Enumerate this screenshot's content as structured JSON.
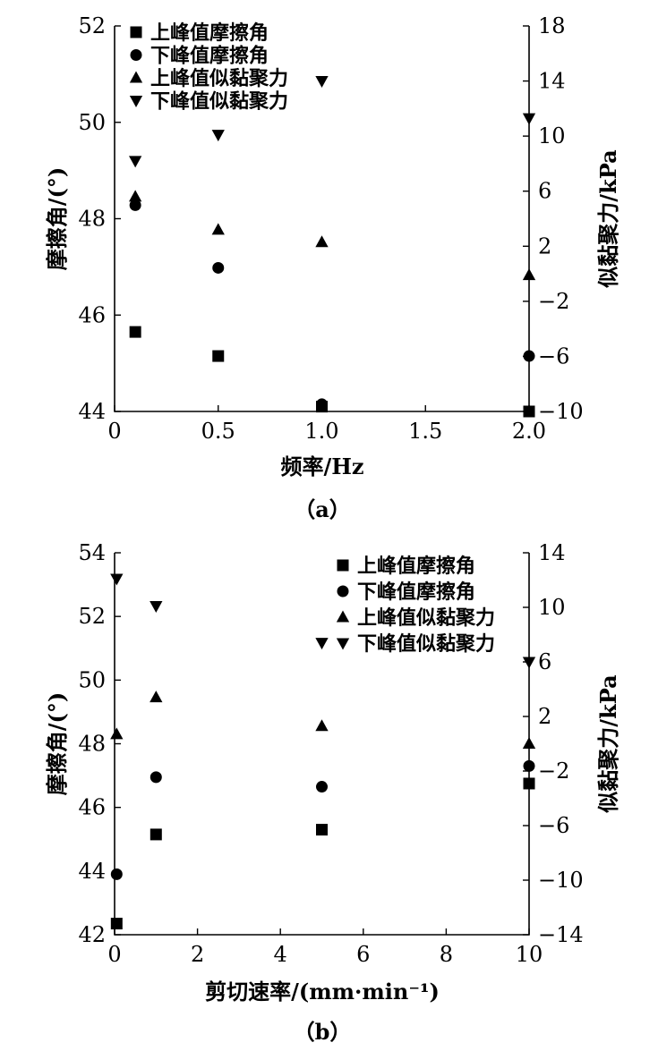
{
  "chart_data": [
    {
      "type": "scatter",
      "caption": "（a）",
      "xlabel": "频率/Hz",
      "ylabel_left": "摩擦角/(°)",
      "ylabel_right": "似黏聚力/kPa",
      "xlim": [
        0,
        2.0
      ],
      "ylim_left": [
        44,
        52
      ],
      "ylim_right": [
        -10,
        18
      ],
      "x_ticks": [
        {
          "value": 0,
          "label": "0"
        },
        {
          "value": 0.5,
          "label": "0.5"
        },
        {
          "value": 1.0,
          "label": "1.0"
        },
        {
          "value": 1.5,
          "label": "1.5"
        },
        {
          "value": 2.0,
          "label": "2.0"
        }
      ],
      "y_left_ticks": [
        {
          "value": 44,
          "label": "44"
        },
        {
          "value": 46,
          "label": "46"
        },
        {
          "value": 48,
          "label": "48"
        },
        {
          "value": 50,
          "label": "50"
        },
        {
          "value": 52,
          "label": "52"
        }
      ],
      "y_right_ticks": [
        {
          "value": -10,
          "label": "−10"
        },
        {
          "value": -6,
          "label": "−6"
        },
        {
          "value": -2,
          "label": "−2"
        },
        {
          "value": 2,
          "label": "2"
        },
        {
          "value": 6,
          "label": "6"
        },
        {
          "value": 10,
          "label": "10"
        },
        {
          "value": 14,
          "label": "14"
        },
        {
          "value": 18,
          "label": "18"
        }
      ],
      "legend_position": "top-left",
      "grid": false,
      "series": [
        {
          "name": "上峰值摩擦角",
          "marker": "square",
          "axis": "left",
          "x": [
            0.1,
            0.5,
            1.0,
            2.0
          ],
          "values": [
            45.65,
            45.15,
            44.1,
            44.0
          ]
        },
        {
          "name": "下峰值摩擦角",
          "marker": "circle",
          "axis": "left",
          "x": [
            0.1,
            0.5,
            1.0,
            2.0
          ],
          "values": [
            48.28,
            46.98,
            44.15,
            45.15
          ]
        },
        {
          "name": "上峰值似黏聚力",
          "marker": "triangle-up",
          "axis": "right",
          "x": [
            0.1,
            0.5,
            1.0,
            2.0
          ],
          "values": [
            5.6,
            3.2,
            2.3,
            -0.1
          ]
        },
        {
          "name": "下峰值似黏聚力",
          "marker": "triangle-down",
          "axis": "right",
          "x": [
            0.1,
            0.5,
            1.0,
            2.0
          ],
          "values": [
            8.2,
            10.1,
            14.0,
            11.3
          ]
        }
      ]
    },
    {
      "type": "scatter",
      "caption": "（b）",
      "xlabel": "剪切速率/(mm·min⁻¹)",
      "ylabel_left": "摩擦角/(°)",
      "ylabel_right": "似黏聚力/kPa",
      "xlim": [
        0,
        10
      ],
      "ylim_left": [
        42,
        54
      ],
      "ylim_right": [
        -14,
        14
      ],
      "x_ticks": [
        {
          "value": 0,
          "label": "0"
        },
        {
          "value": 2,
          "label": "2"
        },
        {
          "value": 4,
          "label": "4"
        },
        {
          "value": 6,
          "label": "6"
        },
        {
          "value": 8,
          "label": "8"
        },
        {
          "value": 10,
          "label": "10"
        }
      ],
      "y_left_ticks": [
        {
          "value": 42,
          "label": "42"
        },
        {
          "value": 44,
          "label": "44"
        },
        {
          "value": 46,
          "label": "46"
        },
        {
          "value": 48,
          "label": "48"
        },
        {
          "value": 50,
          "label": "50"
        },
        {
          "value": 52,
          "label": "52"
        },
        {
          "value": 54,
          "label": "54"
        }
      ],
      "y_right_ticks": [
        {
          "value": -14,
          "label": "−14"
        },
        {
          "value": -10,
          "label": "−10"
        },
        {
          "value": -6,
          "label": "−6"
        },
        {
          "value": -2,
          "label": "−2"
        },
        {
          "value": 2,
          "label": "2"
        },
        {
          "value": 6,
          "label": "6"
        },
        {
          "value": 10,
          "label": "10"
        },
        {
          "value": 14,
          "label": "14"
        }
      ],
      "legend_position": "top-right",
      "grid": false,
      "series": [
        {
          "name": "上峰值摩擦角",
          "marker": "square",
          "axis": "left",
          "x": [
            0.05,
            1,
            5,
            10
          ],
          "values": [
            42.35,
            45.15,
            45.3,
            46.75
          ]
        },
        {
          "name": "下峰值摩擦角",
          "marker": "circle",
          "axis": "left",
          "x": [
            0.05,
            1,
            5,
            10
          ],
          "values": [
            43.9,
            46.95,
            46.65,
            47.3
          ]
        },
        {
          "name": "上峰值似黏聚力",
          "marker": "triangle-up",
          "axis": "right",
          "x": [
            0.05,
            1,
            5,
            10
          ],
          "values": [
            0.7,
            3.4,
            1.3,
            0.0
          ]
        },
        {
          "name": "下峰值似黏聚力",
          "marker": "triangle-down",
          "axis": "right",
          "x": [
            0.05,
            1,
            5,
            10
          ],
          "values": [
            12.1,
            10.1,
            7.4,
            6.0
          ]
        }
      ]
    }
  ]
}
